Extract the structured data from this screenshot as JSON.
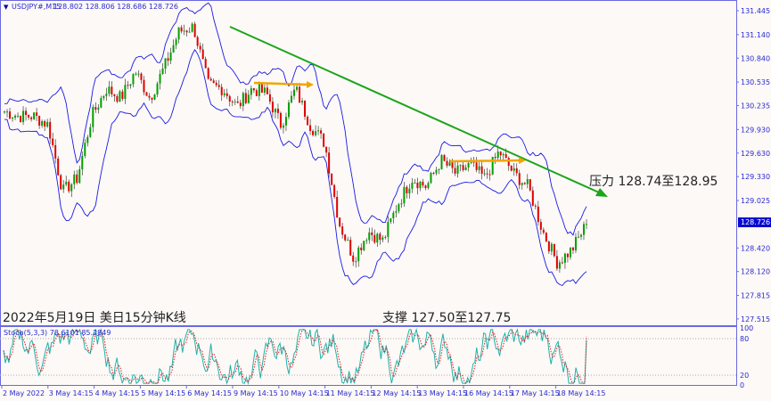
{
  "header": {
    "symbol": "USDJPY#,M15",
    "ohlc": "128.802 128.806 128.686 128.726"
  },
  "chart_data": [
    {
      "type": "candlestick",
      "title": "USDJPY#,M15",
      "y_ticks": [
        "131.445",
        "131.140",
        "130.840",
        "130.535",
        "130.235",
        "129.930",
        "129.630",
        "129.330",
        "129.025",
        "128.420",
        "128.120",
        "127.815",
        "127.515"
      ],
      "current_price": "128.726",
      "ylim": [
        127.42,
        131.58
      ],
      "x_ticks": [
        "2 May 2022",
        "3 May 14:15",
        "4 May 14:15",
        "5 May 14:15",
        "6 May 14:15",
        "9 May 14:15",
        "10 May 14:15",
        "11 May 14:15",
        "12 May 14:15",
        "13 May 14:15",
        "16 May 14:15",
        "17 May 14:15",
        "18 May 14:15"
      ],
      "approx_close_path": [
        130.16,
        130.1,
        130.1,
        129.99,
        129.14,
        129.31,
        130.1,
        130.45,
        130.33,
        130.67,
        130.33,
        130.73,
        131.18,
        131.24,
        130.5,
        130.45,
        130.22,
        130.45,
        130.39,
        129.99,
        130.45,
        129.99,
        129.76,
        128.74,
        128.29,
        128.63,
        128.51,
        128.97,
        129.31,
        129.2,
        129.54,
        129.37,
        129.48,
        129.31,
        129.65,
        129.37,
        129.2,
        128.63,
        128.23,
        128.4,
        128.726
      ],
      "indicators": [
        "Bollinger Bands",
        "Stochastic"
      ],
      "colors": {
        "bull": "#00a000",
        "bear": "#e00000",
        "bands": "#1a1ae6",
        "trendline": "#1aa51a",
        "level": "#f0a500"
      },
      "annotations": {
        "title": "2022年5月19日 美日15分钟K线",
        "resistance": "压力 128.74至128.95",
        "support": "支撑 127.50至127.75"
      }
    },
    {
      "type": "line",
      "title": "Stoch(5,3,3) 78.6101 85.2849",
      "main_value": 78.6101,
      "signal_value": 85.2849,
      "y_ticks": [
        "100",
        "80",
        "20",
        "0"
      ],
      "ylim": [
        0,
        100
      ],
      "colors": {
        "main": "#20b2aa",
        "signal": "#e02020"
      }
    }
  ]
}
